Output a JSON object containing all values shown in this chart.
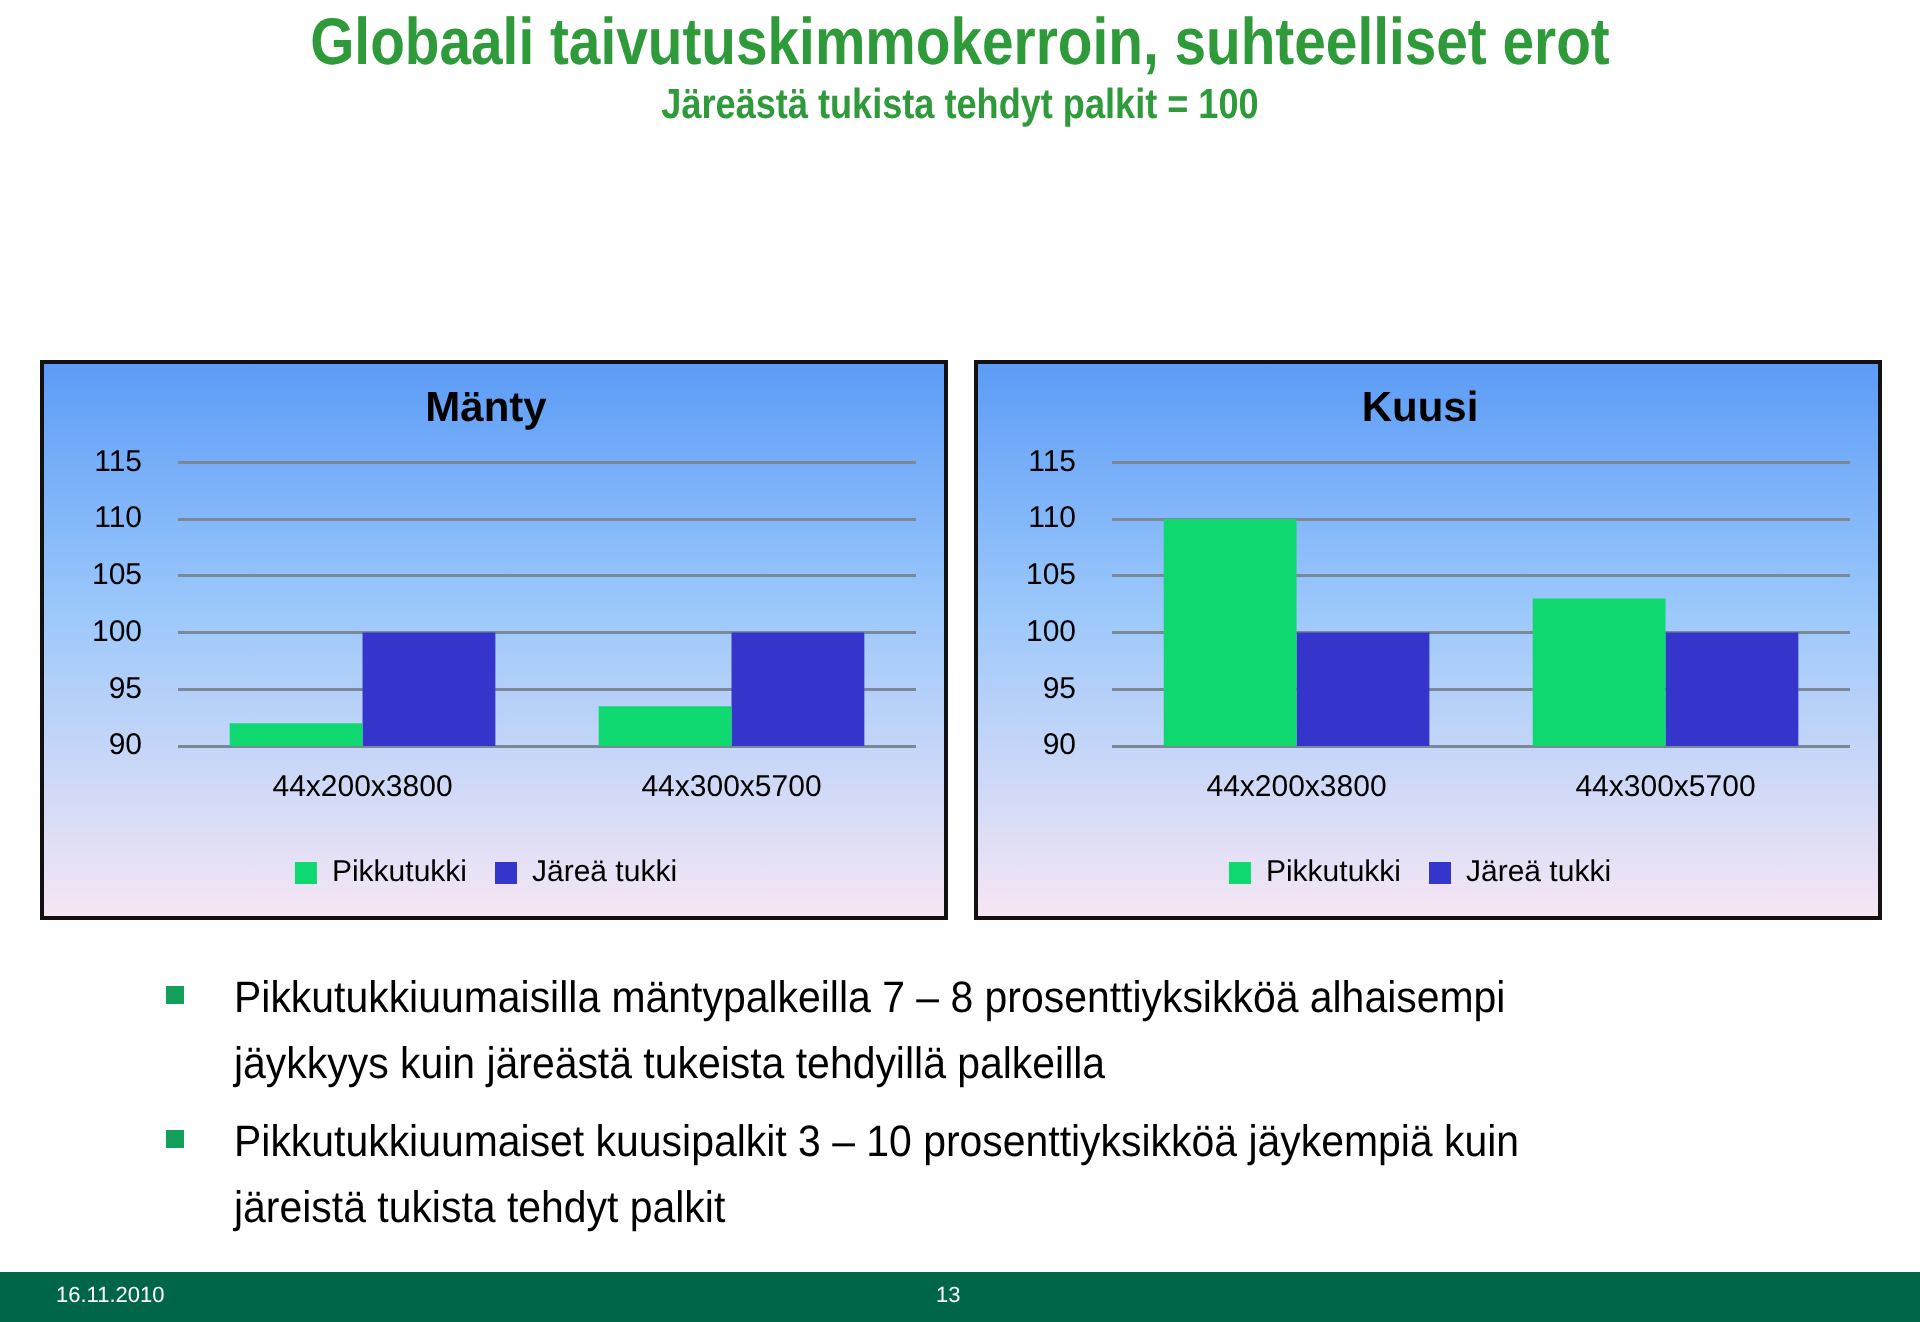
{
  "chart_data": [
    {
      "type": "other",
      "title": "Globaali taivutuskimmokerroin, suhteelliset erot",
      "subtitle": "Järeästä tukista tehdyt palkit = 100"
    },
    {
      "type": "bar",
      "title": "Mänty",
      "categories": [
        "44x200x3800",
        "44x300x5700"
      ],
      "series": [
        {
          "name": "Pikkutukki",
          "color": "#10d870",
          "values": [
            92,
            93.5
          ]
        },
        {
          "name": "Järeä tukki",
          "color": "#3535cc",
          "values": [
            100,
            100
          ]
        }
      ],
      "ylim": [
        90,
        115
      ],
      "yticks": [
        90,
        95,
        100,
        105,
        110,
        115
      ],
      "grid": "y",
      "legend": "bottom"
    },
    {
      "type": "bar",
      "title": "Kuusi",
      "categories": [
        "44x200x3800",
        "44x300x5700"
      ],
      "series": [
        {
          "name": "Pikkutukki",
          "color": "#10d870",
          "values": [
            110,
            103
          ]
        },
        {
          "name": "Järeä tukki",
          "color": "#3535cc",
          "values": [
            100,
            100
          ]
        }
      ],
      "ylim": [
        90,
        115
      ],
      "yticks": [
        90,
        95,
        100,
        105,
        110,
        115
      ],
      "grid": "y",
      "legend": "bottom"
    },
    {
      "type": "other",
      "annotations": [
        "Pikkutukkiuumaisilla mäntypalkeilla 7 – 8 prosenttiyksikköä alhaisempi jäykkyys kuin järeästä tukeista tehdyillä palkeilla",
        "Pikkutukkiuumaiset kuusipalkit 3 – 10 prosenttiyksikköä jäykempiä kuin järeistä tukista tehdyt palkit"
      ]
    },
    {
      "type": "other",
      "annotations": [
        "16.11.2010",
        "13"
      ]
    }
  ]
}
